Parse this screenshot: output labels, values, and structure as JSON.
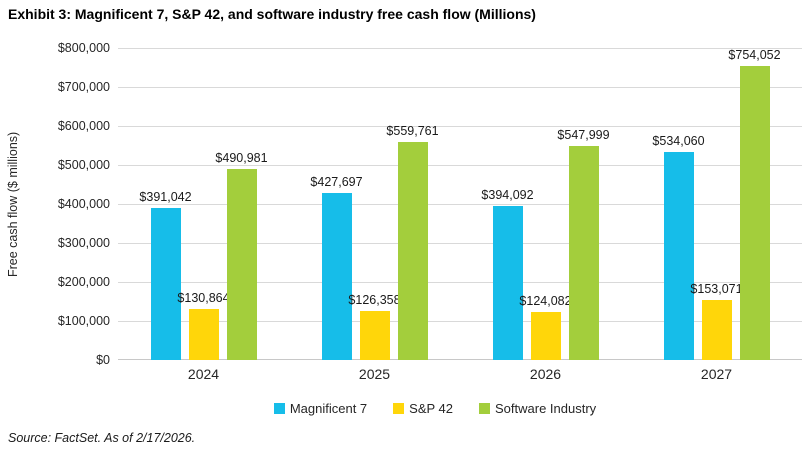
{
  "title": "Exhibit 3: Magnificent 7, S&P 42, and software industry free cash flow (Millions)",
  "source": "Source: FactSet. As of 2/17/2026.",
  "colors": {
    "gridline": "#D9D9D9",
    "axis_line": "#C8C8C8",
    "text": "#262626",
    "magnificent_7": "#16BDE9",
    "sp42": "#FFD60A",
    "software_industry": "#A3CE3C"
  },
  "chart_data": {
    "type": "bar",
    "title": "Exhibit 3: Magnificent 7, S&P 42, and software industry free cash flow (Millions)",
    "xlabel": "",
    "ylabel": "Free cash flow ($ millions)",
    "ylim": [
      0,
      800000
    ],
    "ytick_interval": 100000,
    "yticks": [
      "$0",
      "$100,000",
      "$200,000",
      "$300,000",
      "$400,000",
      "$500,000",
      "$600,000",
      "$700,000",
      "$800,000"
    ],
    "grid": true,
    "legend_position": "bottom",
    "categories": [
      "2024",
      "2025",
      "2026",
      "2027"
    ],
    "series": [
      {
        "name": "Magnificent 7",
        "color": "#16BDE9",
        "values": [
          391042,
          427697,
          394092,
          534060
        ],
        "labels": [
          "$391,042",
          "$427,697",
          "$394,092",
          "$534,060"
        ]
      },
      {
        "name": "S&P 42",
        "color": "#FFD60A",
        "values": [
          130864,
          126358,
          124082,
          153071
        ],
        "labels": [
          "$130,864",
          "$126,358",
          "$124,082",
          "$153,071"
        ]
      },
      {
        "name": "Software Industry",
        "color": "#A3CE3C",
        "values": [
          490981,
          559761,
          547999,
          754052
        ],
        "labels": [
          "$490,981",
          "$559,761",
          "$547,999",
          "$754,052"
        ]
      }
    ]
  }
}
